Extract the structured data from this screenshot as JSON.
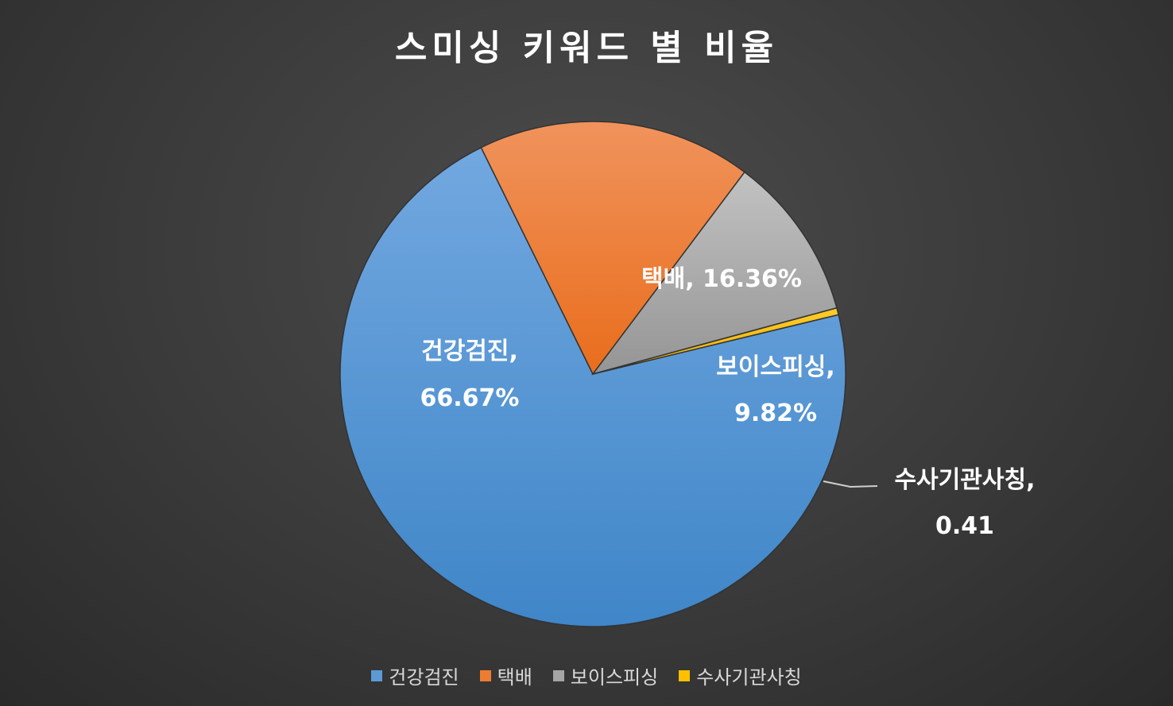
{
  "chart_data": {
    "type": "pie",
    "title": "스미싱 키워드 별 비율",
    "slices": [
      {
        "name": "건강검진",
        "value": 66.67,
        "label_line1": "건강검진,",
        "label_line2": "66.67%",
        "color": "#5b9bd5"
      },
      {
        "name": "택배",
        "value": 16.36,
        "label_line1": "택배, 16.36%",
        "label_line2": "",
        "color": "#ed7d31"
      },
      {
        "name": "보이스피싱",
        "value": 9.82,
        "label_line1": "보이스피싱,",
        "label_line2": "9.82%",
        "color": "#a5a5a5"
      },
      {
        "name": "수사기관사칭",
        "value": 0.41,
        "label_line1": "수사기관사칭,",
        "label_line2": "0.41",
        "color": "#ffc000"
      }
    ],
    "legend_placement": "bottom"
  }
}
